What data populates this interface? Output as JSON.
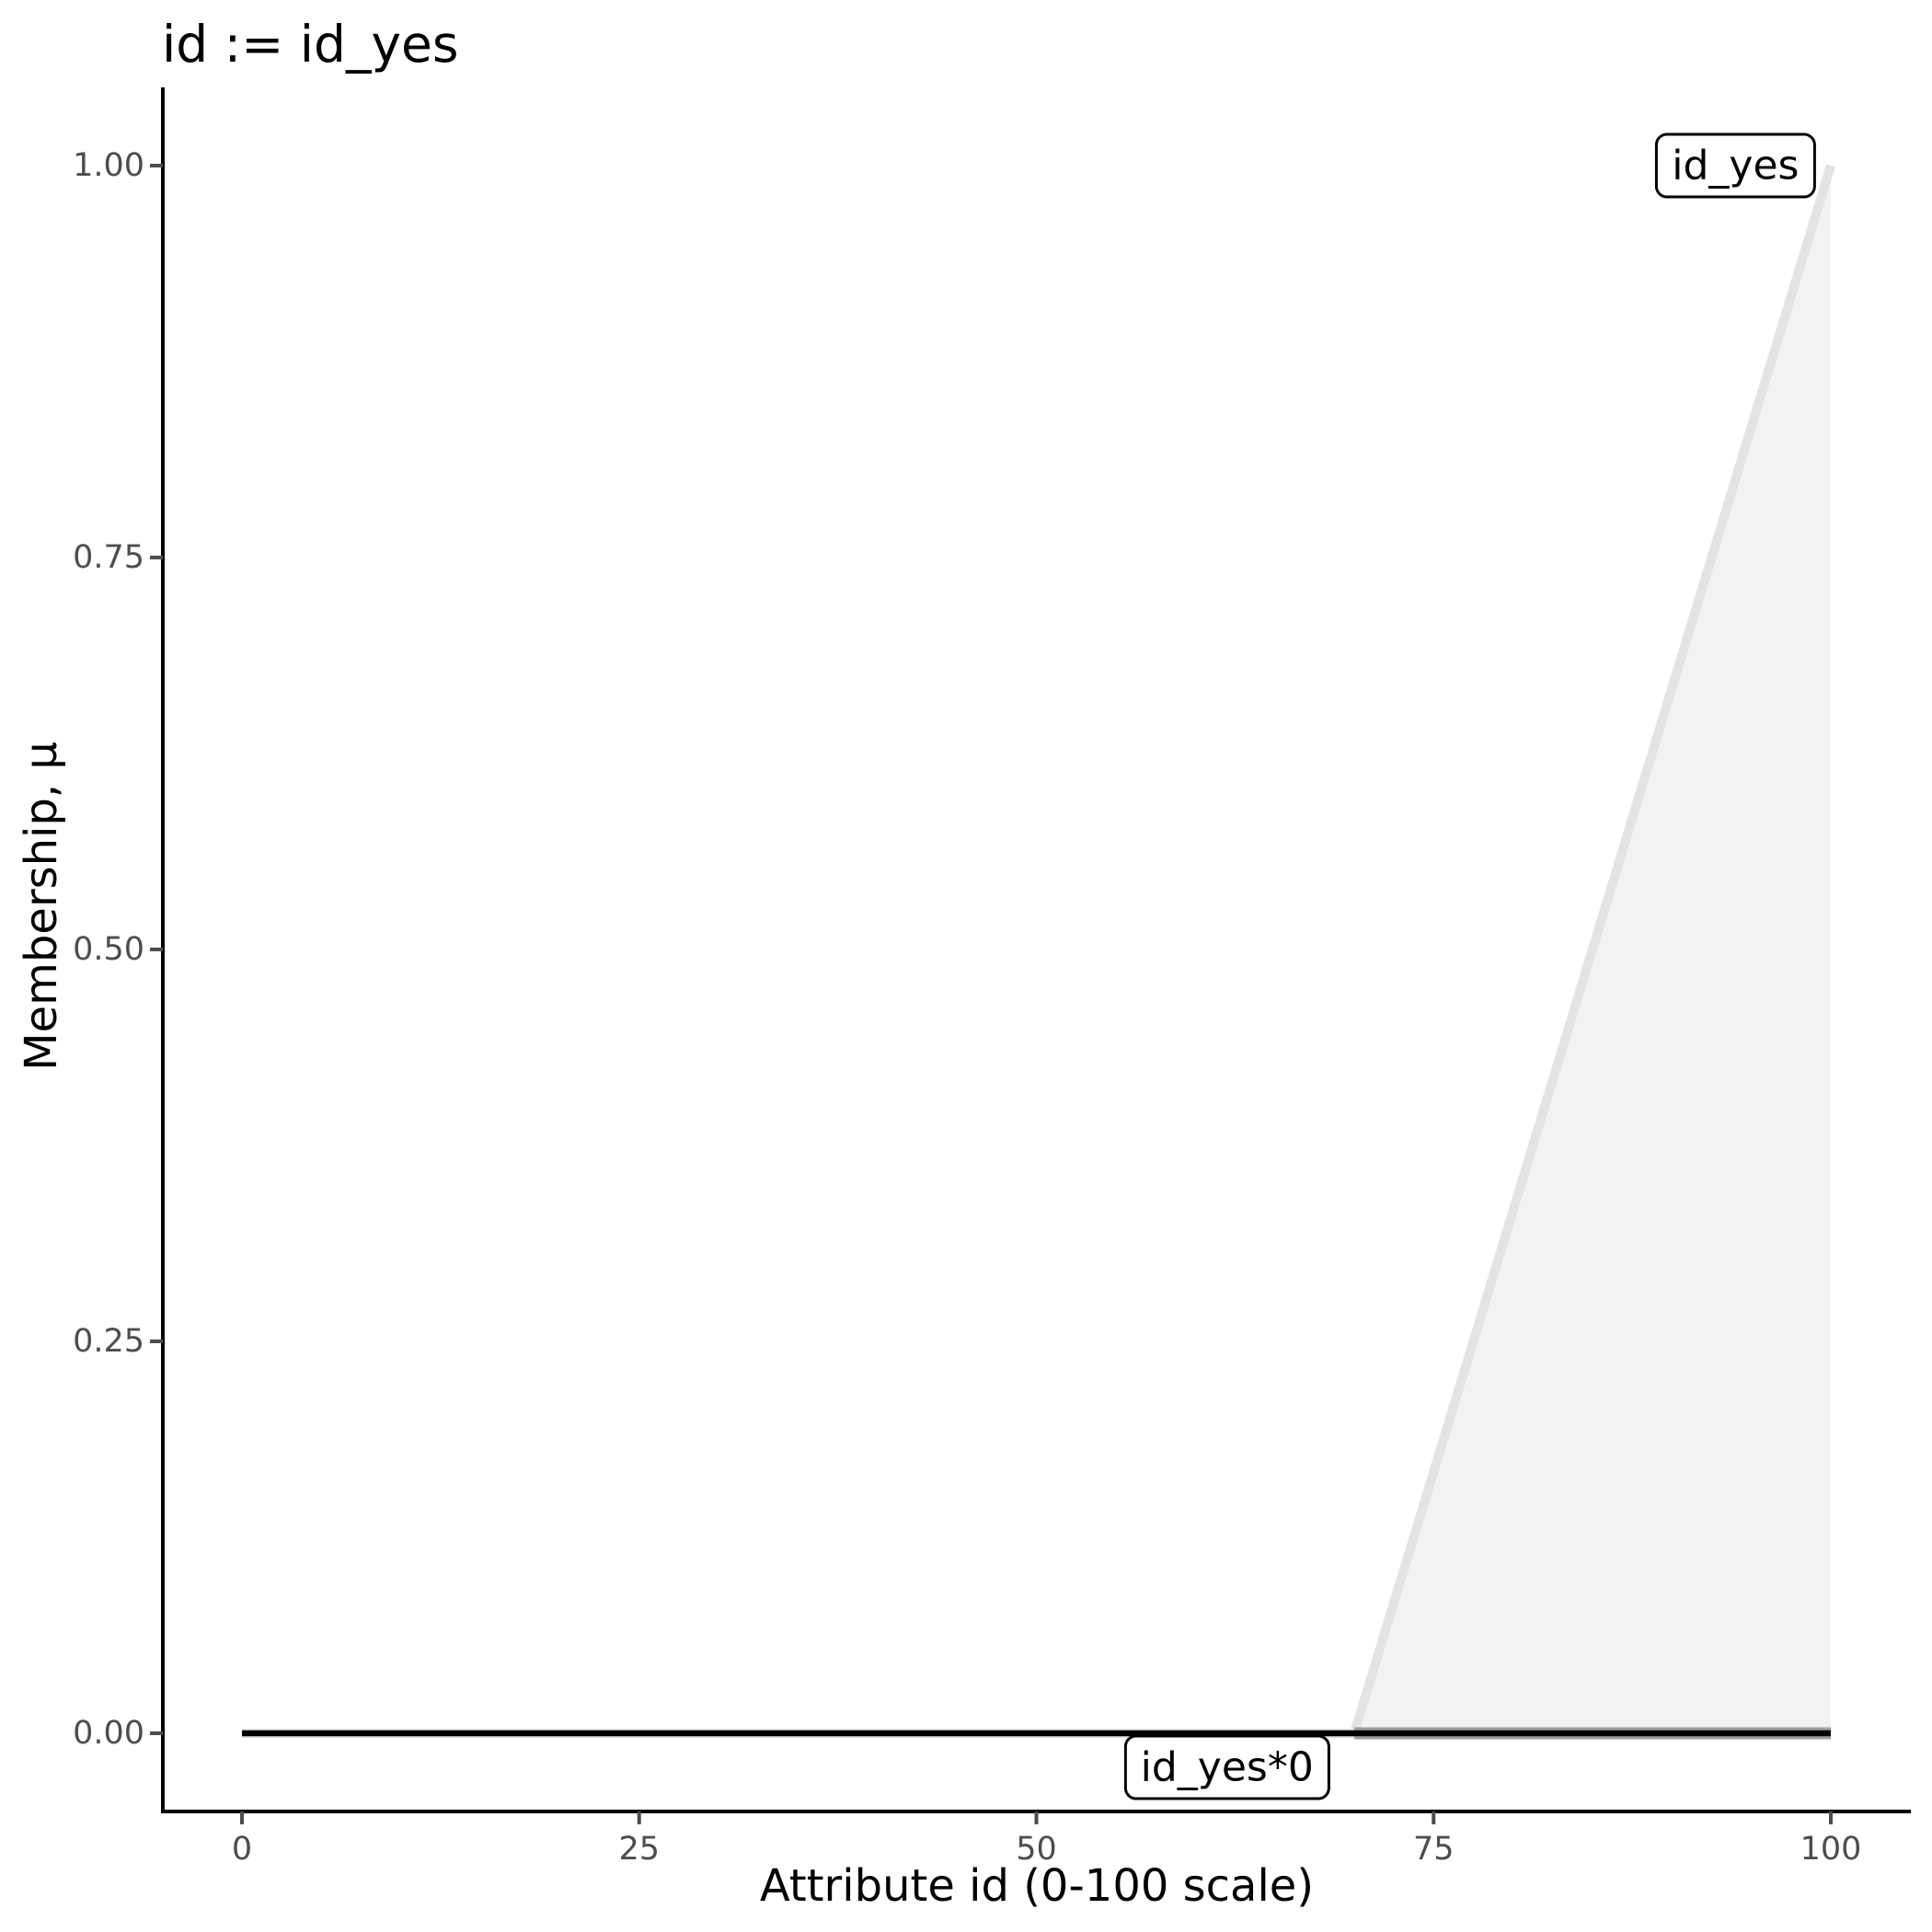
{
  "title": "id := id_yes",
  "axes": {
    "x": {
      "label": "Attribute id (0-100 scale)",
      "tick_labels": [
        "0",
        "25",
        "50",
        "75",
        "100"
      ],
      "tick_values": [
        0,
        25,
        50,
        75,
        100
      ]
    },
    "y": {
      "label": "Membership, μ",
      "tick_labels": [
        "0.00",
        "0.25",
        "0.50",
        "0.75",
        "1.00"
      ],
      "tick_values": [
        0,
        0.25,
        0.5,
        0.75,
        1
      ]
    }
  },
  "colors": {
    "background": "#ffffff",
    "area_fill": "#f2f2f2",
    "membership_line": "#e3e3e3",
    "overlap_band": "#9e9e9e",
    "zero_line": "#000000",
    "axis_line": "#000000",
    "tick_mark": "#4d4d4d",
    "tick_text": "#4d4d4d",
    "title_text": "#000000"
  },
  "chart_data": {
    "type": "area",
    "title": "id := id_yes",
    "xlabel": "Attribute id (0-100 scale)",
    "ylabel": "Membership, μ",
    "xlim": [
      0,
      100
    ],
    "ylim": [
      0,
      1
    ],
    "grid": false,
    "legend_position": "none",
    "series": [
      {
        "name": "id_yes",
        "kind": "line+area",
        "x": [
          0,
          70,
          100
        ],
        "y": [
          0,
          0,
          1
        ],
        "line_color": "#e3e3e3",
        "line_width": 10,
        "fill_color": "#f2f2f2",
        "description": "fuzzy membership: 0 for x<=70, linear ramp to 1 at x=100"
      },
      {
        "name": "id_yes*0",
        "kind": "line",
        "x": [
          0,
          100
        ],
        "y": [
          0,
          0
        ],
        "line_color": "#000000",
        "line_width": 6.5,
        "description": "membership identically 0 over the whole 0-100 universe"
      }
    ],
    "overlap_segment": {
      "x": [
        70,
        100
      ],
      "y": 0,
      "color": "#9e9e9e",
      "width": 13,
      "description": "darker gray band where the id_yes curve base coincides with the zero line"
    },
    "annotations": [
      {
        "text": "id_yes",
        "x": 94,
        "y": 1.0,
        "style": "boxed"
      },
      {
        "text": "id_yes*0",
        "x": 62,
        "y": -0.022,
        "style": "boxed"
      }
    ]
  }
}
